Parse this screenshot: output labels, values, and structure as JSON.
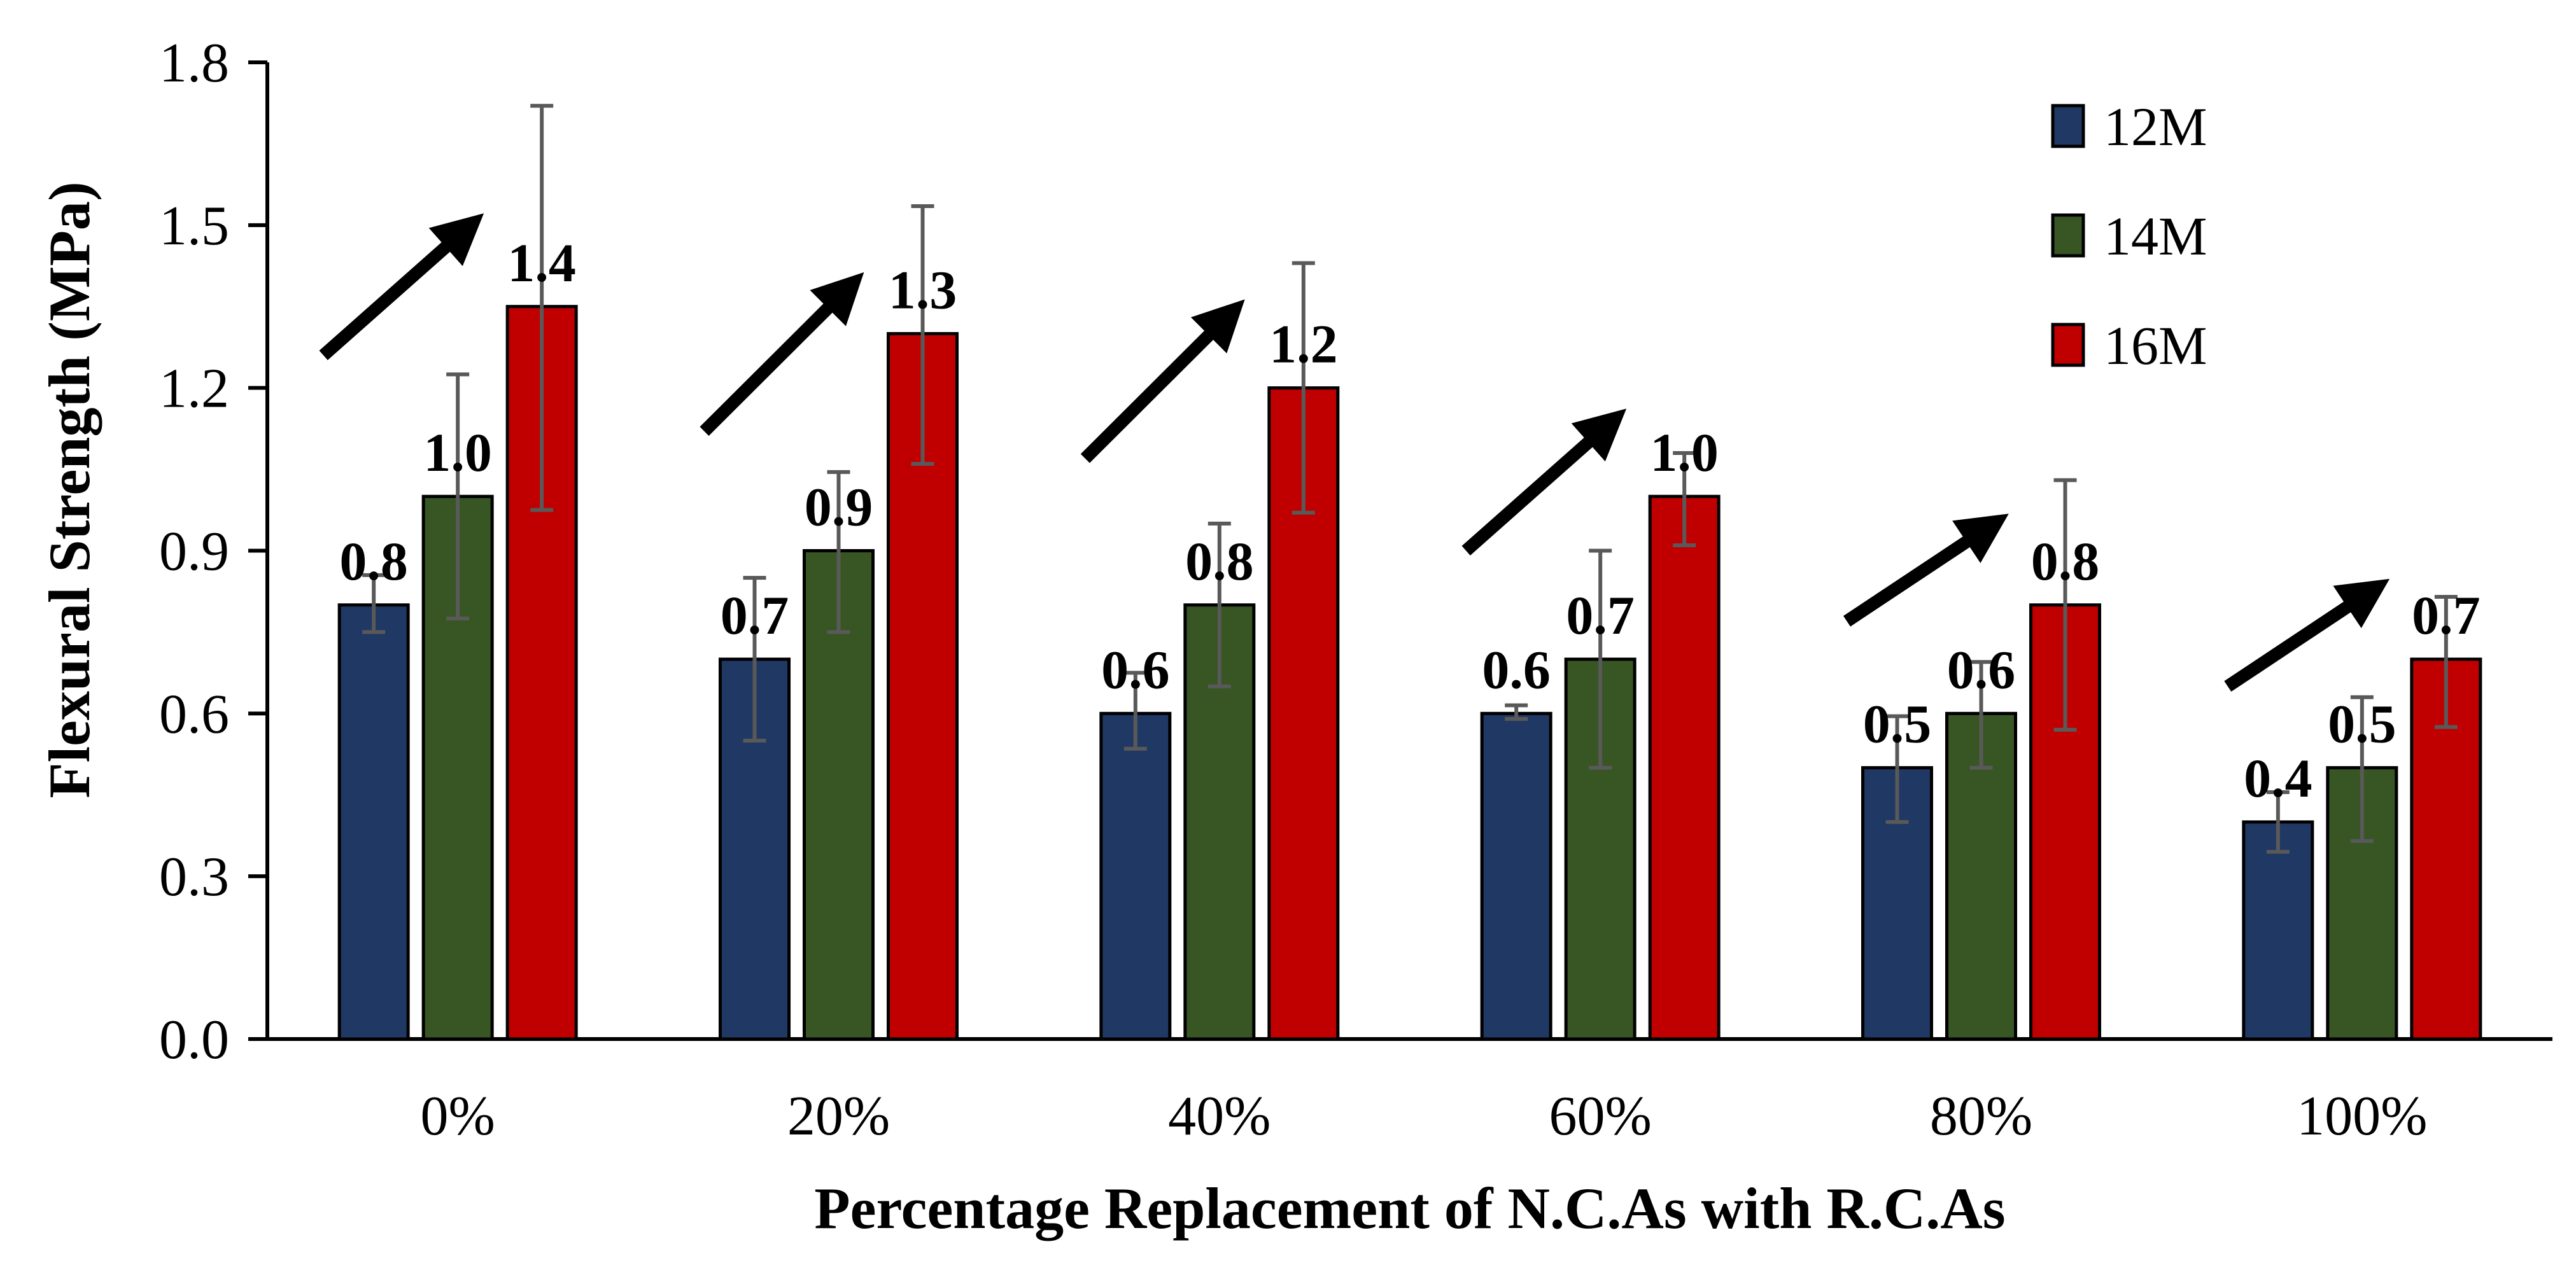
{
  "chart_data": {
    "type": "bar",
    "title": "",
    "xlabel": "Percentage Replacement of N.C.As with R.C.As",
    "ylabel": "Flexural Strength (MPa)",
    "ylim": [
      0,
      1.8
    ],
    "yticks": [
      0.0,
      0.3,
      0.6,
      0.9,
      1.2,
      1.5,
      1.8
    ],
    "ytick_labels": [
      "0.0",
      "0.3",
      "0.6",
      "0.9",
      "1.2",
      "1.5",
      "1.8"
    ],
    "categories": [
      "0%",
      "20%",
      "40%",
      "60%",
      "80%",
      "100%"
    ],
    "grid": false,
    "legend_position": "top-right",
    "series": [
      {
        "name": "12M",
        "color": "#203864",
        "values": [
          0.8,
          0.7,
          0.6,
          0.6,
          0.5,
          0.4
        ],
        "error_low": [
          0.75,
          0.55,
          0.535,
          0.59,
          0.4,
          0.345
        ],
        "error_high": [
          0.855,
          0.85,
          0.675,
          0.615,
          0.595,
          0.455
        ],
        "labels": [
          "0.8",
          "0.7",
          "0.6",
          "0.6",
          "0.5",
          "0.4"
        ]
      },
      {
        "name": "14M",
        "color": "#375623",
        "values": [
          1.0,
          0.9,
          0.8,
          0.7,
          0.6,
          0.5
        ],
        "error_low": [
          0.775,
          0.75,
          0.65,
          0.5,
          0.5,
          0.365
        ],
        "error_high": [
          1.225,
          1.045,
          0.95,
          0.9,
          0.695,
          0.63
        ],
        "labels": [
          "1.0",
          "0.9",
          "0.8",
          "0.7",
          "0.6",
          "0.5"
        ]
      },
      {
        "name": "16M",
        "color": "#C00000",
        "values": [
          1.35,
          1.3,
          1.2,
          1.0,
          0.8,
          0.7
        ],
        "error_low": [
          0.975,
          1.06,
          0.97,
          0.91,
          0.57,
          0.575
        ],
        "error_high": [
          1.72,
          1.535,
          1.43,
          1.08,
          1.03,
          0.815
        ],
        "labels": [
          "1.4",
          "1.3",
          "1.2",
          "1.0",
          "0.8",
          "0.7"
        ]
      }
    ],
    "annotations": [
      {
        "type": "trend-arrow",
        "category": "0%",
        "from": 1.26,
        "to": 1.5
      },
      {
        "type": "trend-arrow",
        "category": "20%",
        "from": 1.12,
        "to": 1.39
      },
      {
        "type": "trend-arrow",
        "category": "40%",
        "from": 1.07,
        "to": 1.34
      },
      {
        "type": "trend-arrow",
        "category": "60%",
        "from": 0.9,
        "to": 1.14
      },
      {
        "type": "trend-arrow",
        "category": "80%",
        "from": 0.77,
        "to": 0.95
      },
      {
        "type": "trend-arrow",
        "category": "100%",
        "from": 0.65,
        "to": 0.83
      }
    ]
  }
}
